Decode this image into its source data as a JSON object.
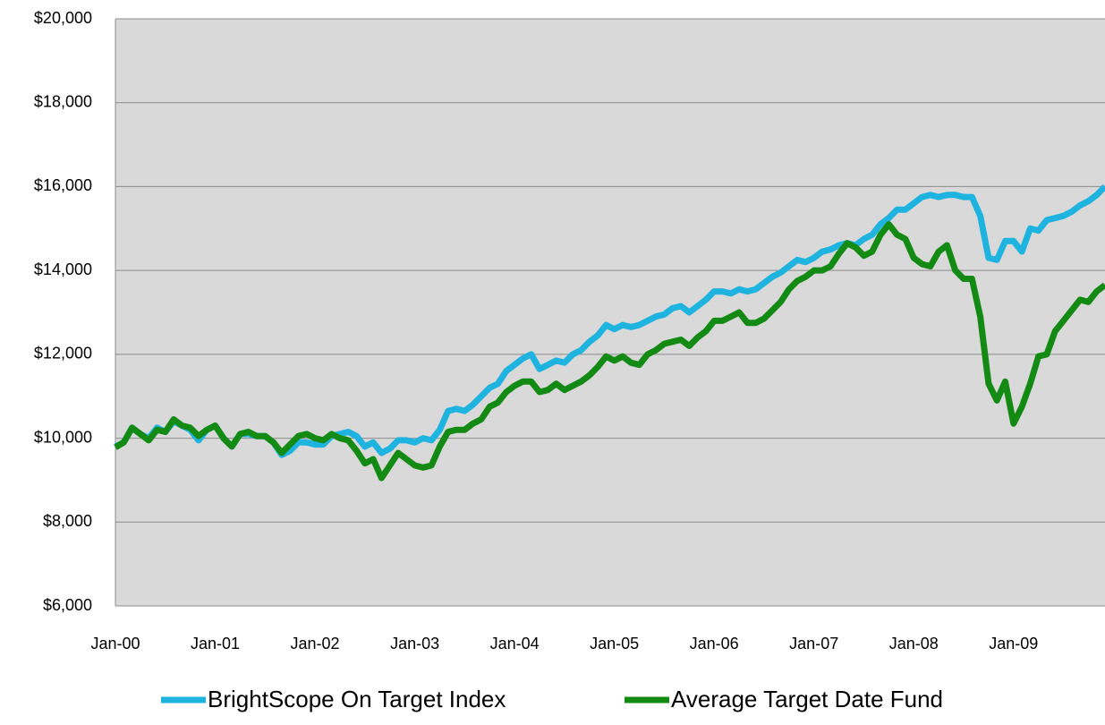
{
  "chart_data": {
    "type": "line",
    "categories": [
      "Jan-00",
      null,
      null,
      null,
      null,
      null,
      null,
      null,
      null,
      null,
      null,
      null,
      "Jan-01",
      null,
      null,
      null,
      null,
      null,
      null,
      null,
      null,
      null,
      null,
      null,
      "Jan-02",
      null,
      null,
      null,
      null,
      null,
      null,
      null,
      null,
      null,
      null,
      null,
      "Jan-03",
      null,
      null,
      null,
      null,
      null,
      null,
      null,
      null,
      null,
      null,
      null,
      "Jan-04",
      null,
      null,
      null,
      null,
      null,
      null,
      null,
      null,
      null,
      null,
      null,
      "Jan-05",
      null,
      null,
      null,
      null,
      null,
      null,
      null,
      null,
      null,
      null,
      null,
      "Jan-06",
      null,
      null,
      null,
      null,
      null,
      null,
      null,
      null,
      null,
      null,
      null,
      "Jan-07",
      null,
      null,
      null,
      null,
      null,
      null,
      null,
      null,
      null,
      null,
      null,
      "Jan-08",
      null,
      null,
      null,
      null,
      null,
      null,
      null,
      null,
      null,
      null,
      null,
      "Jan-09",
      null,
      null,
      null,
      null,
      null,
      null,
      null,
      null,
      null,
      null,
      null
    ],
    "series": [
      {
        "name": "BrightScope On Target Index",
        "color": "#1fb4e0",
        "values": [
          9800,
          9900,
          10250,
          10100,
          10000,
          10250,
          10150,
          10400,
          10300,
          10200,
          9950,
          10200,
          10300,
          10000,
          9800,
          10100,
          10100,
          10050,
          10050,
          9900,
          9600,
          9700,
          9900,
          9900,
          9850,
          9850,
          10050,
          10100,
          10150,
          10050,
          9800,
          9900,
          9650,
          9750,
          9950,
          9950,
          9900,
          10000,
          9950,
          10200,
          10650,
          10700,
          10650,
          10800,
          11000,
          11200,
          11300,
          11600,
          11750,
          11900,
          12000,
          11650,
          11750,
          11850,
          11800,
          12000,
          12100,
          12300,
          12450,
          12700,
          12600,
          12700,
          12650,
          12700,
          12800,
          12900,
          12950,
          13100,
          13150,
          13000,
          13150,
          13300,
          13500,
          13500,
          13450,
          13550,
          13500,
          13550,
          13700,
          13850,
          13950,
          14100,
          14250,
          14200,
          14300,
          14450,
          14500,
          14600,
          14650,
          14600,
          14750,
          14850,
          15100,
          15250,
          15450,
          15450,
          15600,
          15750,
          15800,
          15750,
          15800,
          15800,
          15750,
          15750,
          15300,
          14300,
          14250,
          14700,
          14700,
          14450,
          15000,
          14950,
          15200,
          15250,
          15300,
          15400,
          15550,
          15650,
          15800,
          16000
        ]
      },
      {
        "name": "Average Target Date Fund",
        "color": "#138a13",
        "values": [
          9780,
          9900,
          10250,
          10100,
          9950,
          10200,
          10150,
          10450,
          10300,
          10250,
          10050,
          10200,
          10300,
          10000,
          9800,
          10100,
          10150,
          10050,
          10050,
          9900,
          9650,
          9850,
          10050,
          10100,
          10000,
          9950,
          10100,
          10000,
          9950,
          9700,
          9400,
          9500,
          9050,
          9350,
          9650,
          9500,
          9350,
          9300,
          9350,
          9800,
          10150,
          10200,
          10200,
          10350,
          10450,
          10750,
          10850,
          11100,
          11250,
          11350,
          11350,
          11100,
          11150,
          11300,
          11150,
          11250,
          11350,
          11500,
          11700,
          11950,
          11850,
          11950,
          11800,
          11750,
          12000,
          12100,
          12250,
          12300,
          12350,
          12200,
          12400,
          12550,
          12800,
          12800,
          12900,
          13000,
          12750,
          12750,
          12850,
          13050,
          13250,
          13550,
          13750,
          13850,
          14000,
          14000,
          14100,
          14400,
          14650,
          14550,
          14350,
          14450,
          14850,
          15100,
          14850,
          14750,
          14300,
          14150,
          14100,
          14450,
          14600,
          14000,
          13800,
          13800,
          12900,
          11300,
          10900,
          11350,
          10350,
          10750,
          11300,
          11950,
          12000,
          12550,
          12800,
          13050,
          13300,
          13250,
          13500,
          13650
        ]
      }
    ],
    "ylim": [
      6000,
      20000
    ],
    "yticks": [
      {
        "value": 6000,
        "label": "$6,000"
      },
      {
        "value": 8000,
        "label": "$8,000"
      },
      {
        "value": 10000,
        "label": "$10,000"
      },
      {
        "value": 12000,
        "label": "$12,000"
      },
      {
        "value": 14000,
        "label": "$14,000"
      },
      {
        "value": 16000,
        "label": "$16,000"
      },
      {
        "value": 18000,
        "label": "$18,000"
      },
      {
        "value": 20000,
        "label": "$20,000"
      }
    ],
    "grid": true
  }
}
